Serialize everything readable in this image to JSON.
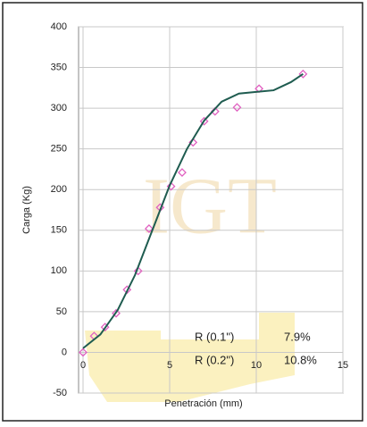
{
  "chart_data": {
    "type": "scatter",
    "xlabel": "Penetración (mm)",
    "ylabel": "Carga (Kg)",
    "xlim": [
      0,
      15
    ],
    "ylim": [
      -50,
      400
    ],
    "xticks": [
      0,
      5,
      10,
      15
    ],
    "yticks": [
      -50,
      0,
      50,
      100,
      150,
      200,
      250,
      300,
      350,
      400
    ],
    "grid": true,
    "series": [
      {
        "color": "#e060c0",
        "x": [
          0,
          0.64,
          1.27,
          1.91,
          2.54,
          3.18,
          3.81,
          4.45,
          5.08,
          5.72,
          6.35,
          6.99,
          7.62,
          8.89,
          10.16,
          12.7
        ],
        "values": [
          0,
          20,
          31,
          48,
          77,
          100,
          152,
          178,
          204,
          221,
          258,
          284,
          296,
          301,
          324,
          342
        ]
      },
      {
        "type": "line",
        "color": "#1f5c50",
        "x": [
          0,
          1,
          2,
          3,
          4,
          5,
          6,
          7,
          8,
          9,
          10,
          11,
          12,
          12.7
        ],
        "values": [
          5,
          22,
          52,
          95,
          150,
          205,
          250,
          285,
          308,
          318,
          320,
          322,
          332,
          342
        ]
      }
    ],
    "annotations": [
      "R (0.1\")",
      "7.9%",
      "R (0.2\")",
      "10.8%"
    ]
  }
}
